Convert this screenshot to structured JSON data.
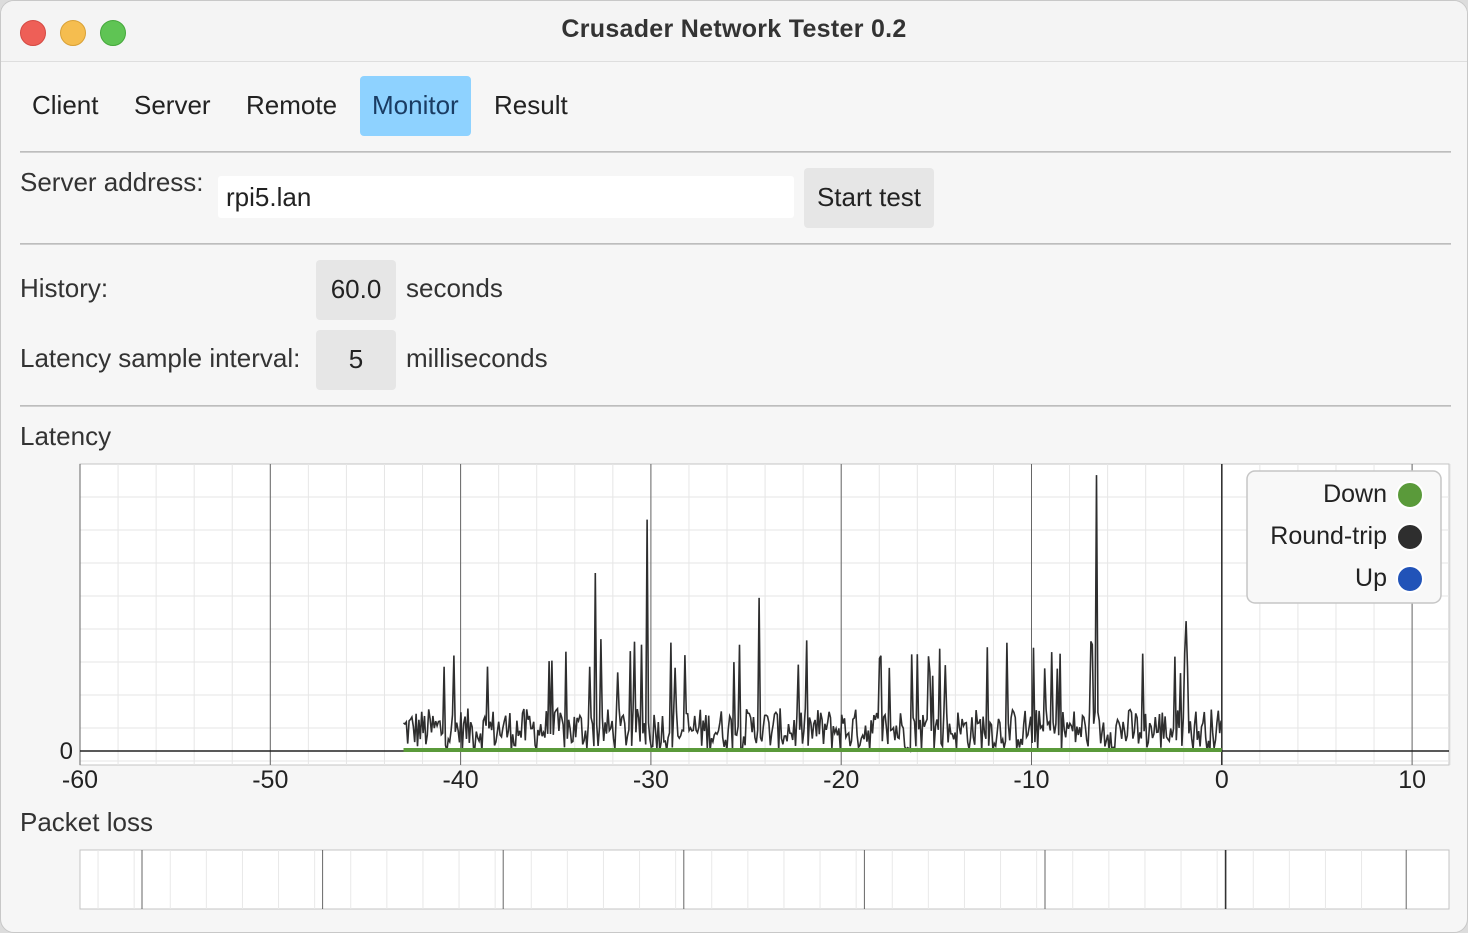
{
  "window": {
    "title": "Crusader Network Tester 0.2"
  },
  "tabs": [
    {
      "label": "Client",
      "active": false
    },
    {
      "label": "Server",
      "active": false
    },
    {
      "label": "Remote",
      "active": false
    },
    {
      "label": "Monitor",
      "active": true
    },
    {
      "label": "Result",
      "active": false
    }
  ],
  "server": {
    "label": "Server address:",
    "value": "rpi5.lan",
    "button": "Start test"
  },
  "history": {
    "label": "History:",
    "value": "60.0",
    "unit": "seconds"
  },
  "interval": {
    "label": "Latency sample interval:",
    "value": "5",
    "unit": "milliseconds"
  },
  "latency_section": {
    "title": "Latency"
  },
  "packet_loss_section": {
    "title": "Packet loss"
  },
  "colors": {
    "accent_tab": "#8ed2ff",
    "down": "#5a9a3a",
    "roundtrip": "#2e2e2e",
    "up": "#2153b8"
  },
  "chart_data": {
    "type": "line",
    "xlim": [
      -60,
      12
    ],
    "x_ticks": [
      "-60",
      "-50",
      "-40",
      "-30",
      "-20",
      "-10",
      "0",
      "10"
    ],
    "y_ticks": [
      "0"
    ],
    "legend_position": "top-right",
    "series": [
      {
        "name": "Down",
        "x": [
          -43,
          0
        ],
        "y": [
          0,
          0
        ]
      },
      {
        "name": "Round-trip",
        "x_start": -43,
        "x_end": 0,
        "baseline_typical": 2,
        "spike_typical": 6,
        "peaks": [
          {
            "x": -32.9,
            "y": 10
          },
          {
            "x": -30.2,
            "y": 13
          },
          {
            "x": -24.3,
            "y": 8.6
          },
          {
            "x": -6.6,
            "y": 15.5
          },
          {
            "x": -1.9,
            "y": 7.3
          }
        ]
      },
      {
        "name": "Up",
        "x": [
          -43,
          0
        ],
        "y": [
          0,
          0
        ]
      }
    ]
  }
}
